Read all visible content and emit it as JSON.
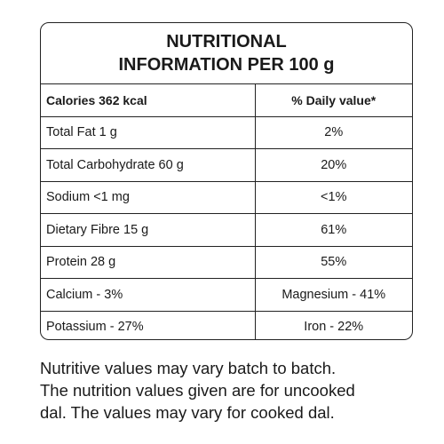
{
  "title": {
    "line1": "NUTRITIONAL",
    "line2": "INFORMATION PER 100 g"
  },
  "header": {
    "left": "Calories 362 kcal",
    "right": "% Daily value*"
  },
  "rows": [
    {
      "left": "Total Fat 1 g",
      "right": "2%"
    },
    {
      "left": "Total Carbohydrate 60 g",
      "right": "20%"
    },
    {
      "left": "Sodium <1 mg",
      "right": "<1%"
    },
    {
      "left": "Dietary Fibre 15 g",
      "right": "61%"
    },
    {
      "left": "Protein 28 g",
      "right": "55%"
    },
    {
      "left": "Calcium - 3%",
      "right": "Magnesium - 41%"
    },
    {
      "left": "Potassium - 27%",
      "right": "Iron - 22%"
    }
  ],
  "note": {
    "line1": "Nutritive values may vary batch to batch.",
    "line2": "The nutrition values given are for uncooked",
    "line3": "dal. The values may vary for cooked dal."
  }
}
